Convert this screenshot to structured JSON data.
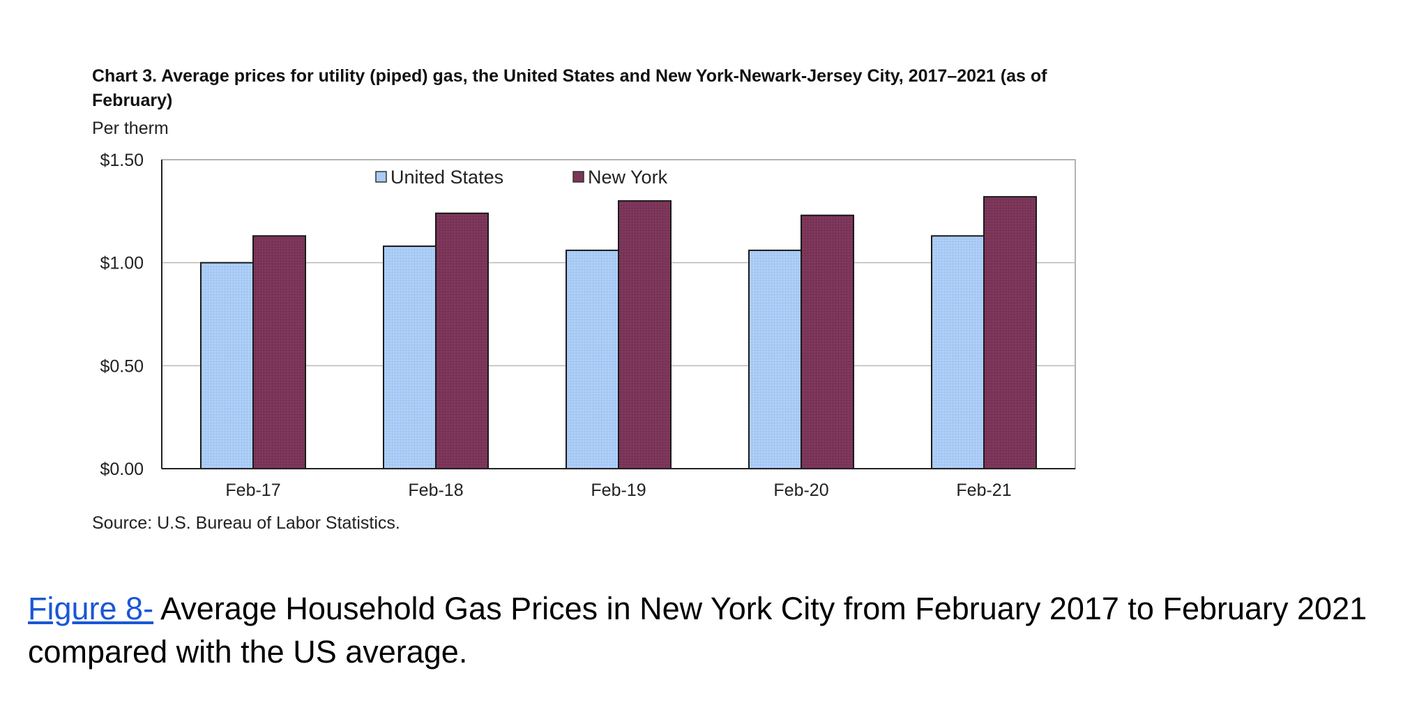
{
  "colors": {
    "united_states": "#a9cbf5",
    "new_york": "#7b3559",
    "gridline": "#b9b9b9",
    "plot_border": "#9a9a9a",
    "axis": "#222222",
    "caption_link": "#1a57d6"
  },
  "chart_data": {
    "type": "bar",
    "title": "Chart 3. Average prices for utility (piped) gas, the United States and New York-Newark-Jersey City, 2017–2021 (as of February)",
    "ylabel": "Per therm",
    "categories": [
      "Feb-17",
      "Feb-18",
      "Feb-19",
      "Feb-20",
      "Feb-21"
    ],
    "series": [
      {
        "name": "United States",
        "values": [
          1.0,
          1.08,
          1.06,
          1.06,
          1.13
        ]
      },
      {
        "name": "New York",
        "values": [
          1.13,
          1.24,
          1.3,
          1.23,
          1.32
        ]
      }
    ],
    "ylim": [
      0,
      1.5
    ],
    "yticks": [
      "$0.00",
      "$0.50",
      "$1.00",
      "$1.50"
    ],
    "ytick_values": [
      0,
      0.5,
      1.0,
      1.5
    ],
    "grid": true,
    "legend_position": "top-center",
    "source": "Source: U.S. Bureau of Labor Statistics."
  },
  "caption": {
    "link_text": "Figure 8-",
    "text": " Average Household Gas Prices in New York City from February 2017 to February 2021 compared with the US average."
  }
}
